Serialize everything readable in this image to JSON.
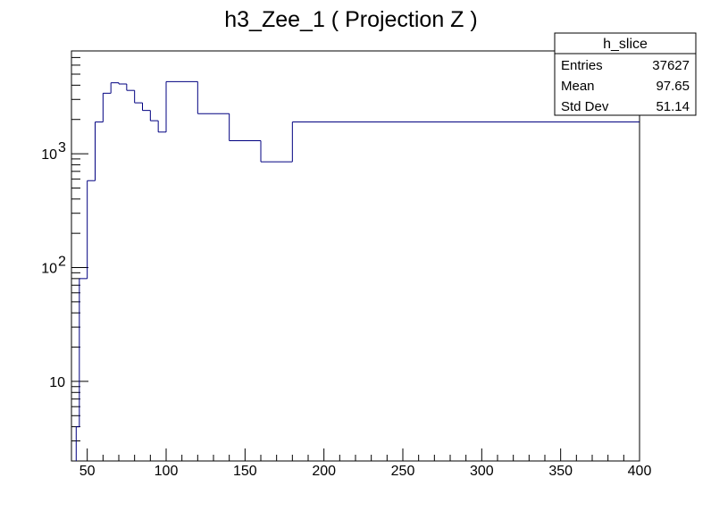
{
  "chart_data": {
    "type": "histogram",
    "title": "h3_Zee_1 ( Projection Z )",
    "xlabel": "",
    "ylabel": "",
    "xlim": [
      40,
      400
    ],
    "ylim": [
      2,
      8000
    ],
    "y_scale": "log",
    "line_color": "#000080",
    "x_ticks": [
      "50",
      "100",
      "150",
      "200",
      "250",
      "300",
      "350",
      "400"
    ],
    "y_ticks": [
      {
        "value": 10,
        "label": "10"
      },
      {
        "value": 100,
        "label": "10",
        "exp": "2"
      },
      {
        "value": 1000,
        "label": "10",
        "exp": "3"
      }
    ],
    "bin_edges": [
      43,
      45,
      50,
      55,
      60,
      65,
      70,
      75,
      80,
      85,
      90,
      95,
      100,
      120,
      140,
      160,
      180,
      400
    ],
    "counts": [
      4,
      80,
      580,
      1900,
      3400,
      4200,
      4100,
      3600,
      2800,
      2400,
      1950,
      1550,
      4300,
      2250,
      1300,
      850,
      1900
    ],
    "stats": {
      "name": "h_slice",
      "rows": [
        {
          "label": "Entries",
          "value": "37627"
        },
        {
          "label": "Mean",
          "value": "97.65"
        },
        {
          "label": "Std Dev",
          "value": "51.14"
        }
      ]
    }
  }
}
